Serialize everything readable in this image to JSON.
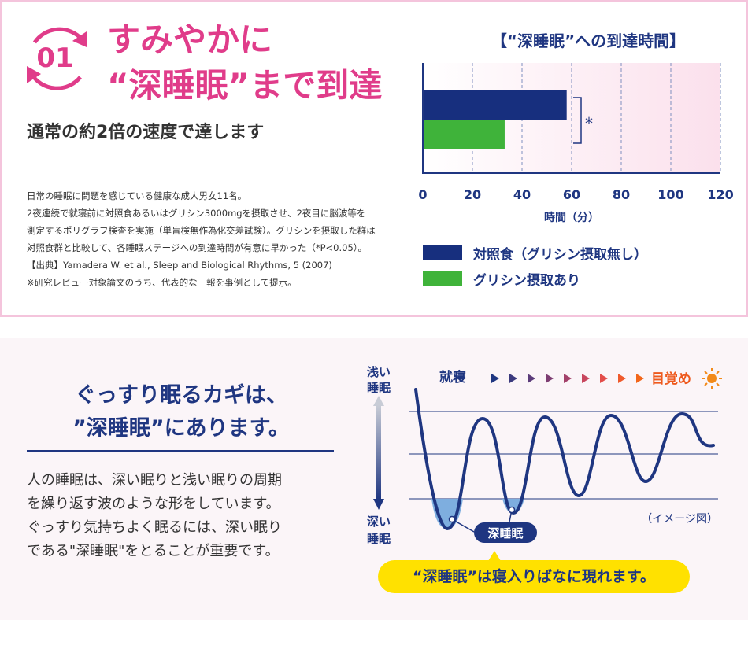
{
  "top": {
    "badge_number": "01",
    "headline_line1": "すみやかに",
    "headline_line2": "“深睡眠”まで到達",
    "subheadline": "通常の約2倍の速度で達します",
    "notes": [
      "日常の睡眠に問題を感じている健康な成人男女11名。",
      "2夜連続で就寝前に対照食あるいはグリシン3000mgを摂取させ、2夜目に脳波等を",
      "測定するポリグラフ検査を実施（単盲検無作為化交差試験）。グリシンを摂取した群は",
      "対照食群と比較して、各睡眠ステージへの到達時間が有意に早かった（*P<0.05）。",
      "【出典】Yamadera W. et al., Sleep and Biological Rhythms, 5 (2007)",
      "※研究レビュー対象論文のうち、代表的な一報を事例として提示。"
    ]
  },
  "chart_data": {
    "type": "bar",
    "orientation": "horizontal",
    "title": "【“深睡眠”への到達時間】",
    "xlabel": "時間（分）",
    "ylabel": "",
    "xlim": [
      0,
      120
    ],
    "xticks": [
      "0",
      "20",
      "40",
      "60",
      "80",
      "100",
      "120"
    ],
    "tick_values": [
      0,
      20,
      40,
      60,
      80,
      100,
      120
    ],
    "grid": true,
    "legend_placement": "bottom",
    "significance_marker": "*",
    "series": [
      {
        "name": "対照食（グリシン摂取無し）",
        "value": 58,
        "color": "#172f7e"
      },
      {
        "name": "グリシン摂取あり",
        "value": 33,
        "color": "#3fb33a"
      }
    ]
  },
  "bottom": {
    "lead_line1": "ぐっすり眠るカギは、",
    "lead_line2": "”深睡眠”にあります。",
    "body": [
      "人の睡眠は、深い眠りと浅い眠りの周期",
      "を繰り返す波のような形をしています。",
      "ぐっすり気持ちよく眠るには、深い眠り",
      "である\"深睡眠\"をとることが重要です。"
    ],
    "diagram": {
      "shallow_label": [
        "浅い",
        "睡眠"
      ],
      "deep_label": [
        "深い",
        "睡眠"
      ],
      "sleep_label": "就寝",
      "wake_label": "目覚め",
      "image_note": "（イメージ図）",
      "deep_sleep_tag": "深睡眠",
      "moon_icon": "crescent-moon-icon",
      "sun_icon": "sun-icon",
      "arrow_colors": [
        "#1f3681",
        "#3b3a7e",
        "#5b3b7a",
        "#7d3d72",
        "#a3416a",
        "#c8465e",
        "#e34d4a",
        "#ef5a2c",
        "#f2661a"
      ],
      "wave_color": "#1f3681",
      "deep_fill_color": "#7eaedf"
    },
    "callout": "“深睡眠”は寝入りばなに現れます。"
  }
}
